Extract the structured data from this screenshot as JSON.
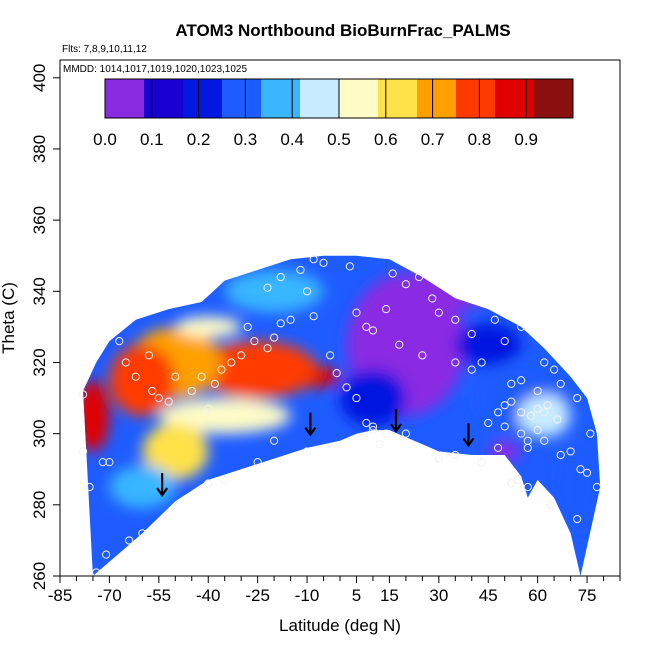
{
  "chart_data": {
    "type": "heatmap",
    "title": "ATOM3 Northbound BioBurnFrac_PALMS",
    "subtitle_flights": "Flts: 7,8,9,10,11,12",
    "subtitle_dates": "MMDD: 1014,1017,1019,1020,1023,1025",
    "xlabel": "Latitude (deg N)",
    "ylabel": "Theta (C)",
    "xlim": [
      -85,
      85
    ],
    "ylim": [
      260,
      405
    ],
    "x_ticks": [
      -85,
      -70,
      -55,
      -40,
      -25,
      -10,
      5,
      15,
      30,
      45,
      60,
      75
    ],
    "y_ticks": [
      260,
      280,
      300,
      320,
      340,
      360,
      380,
      400
    ],
    "colorbar": {
      "min": 0.0,
      "max": 1.0,
      "tick_values": [
        0.0,
        0.1,
        0.2,
        0.3,
        0.4,
        0.5,
        0.6,
        0.7,
        0.8,
        0.9
      ],
      "tick_labels": [
        "0.0",
        "0.1",
        "0.2",
        "0.3",
        "0.4",
        "0.5",
        "0.6",
        "0.7",
        "0.8",
        "0.9"
      ],
      "colors": [
        "#8a2be2",
        "#1a00d0",
        "#0018e0",
        "#1e5cff",
        "#39b6ff",
        "#c8ecff",
        "#fffcc8",
        "#ffe14a",
        "#ffa000",
        "#ff3a00",
        "#e00000",
        "#8b1010"
      ]
    },
    "tropopause_arrows": [
      {
        "lat": -54,
        "theta": 283
      },
      {
        "lat": -9,
        "theta": 300
      },
      {
        "lat": 17,
        "theta": 301
      },
      {
        "lat": 39,
        "theta": 297
      }
    ],
    "domain_bottom": [
      [
        -75,
        260
      ],
      [
        -70,
        264
      ],
      [
        -60,
        272
      ],
      [
        -50,
        281
      ],
      [
        -40,
        287
      ],
      [
        -30,
        290
      ],
      [
        -20,
        293
      ],
      [
        -10,
        296
      ],
      [
        0,
        298
      ],
      [
        5,
        300
      ],
      [
        10,
        301
      ],
      [
        15,
        301
      ],
      [
        20,
        299
      ],
      [
        25,
        297
      ],
      [
        30,
        295
      ],
      [
        40,
        294
      ],
      [
        50,
        294
      ],
      [
        55,
        288
      ],
      [
        57,
        282
      ],
      [
        60,
        287
      ],
      [
        65,
        282
      ],
      [
        70,
        272
      ],
      [
        73,
        260
      ]
    ],
    "domain_top": [
      [
        -78,
        312
      ],
      [
        -74,
        320
      ],
      [
        -70,
        326
      ],
      [
        -62,
        332
      ],
      [
        -52,
        335
      ],
      [
        -42,
        337
      ],
      [
        -35,
        343
      ],
      [
        -25,
        346
      ],
      [
        -15,
        349
      ],
      [
        -5,
        350
      ],
      [
        5,
        350
      ],
      [
        15,
        349
      ],
      [
        25,
        344
      ],
      [
        35,
        338
      ],
      [
        45,
        335
      ],
      [
        55,
        330
      ],
      [
        62,
        324
      ],
      [
        70,
        316
      ],
      [
        75,
        310
      ],
      [
        78,
        300
      ],
      [
        79,
        285
      ]
    ],
    "field_features": [
      {
        "lat": -8,
        "theta": 316,
        "value": 0.9,
        "rx": 8,
        "ry": 3
      },
      {
        "lat": -25,
        "theta": 318,
        "value": 0.8,
        "rx": 18,
        "ry": 8
      },
      {
        "lat": -50,
        "theta": 320,
        "value": 0.7,
        "rx": 14,
        "ry": 10
      },
      {
        "lat": -75,
        "theta": 305,
        "value": 0.85,
        "rx": 5,
        "ry": 10
      },
      {
        "lat": -60,
        "theta": 315,
        "value": 0.75,
        "rx": 10,
        "ry": 10
      },
      {
        "lat": -40,
        "theta": 330,
        "value": 0.55,
        "rx": 10,
        "ry": 3
      },
      {
        "lat": -35,
        "theta": 305,
        "value": 0.55,
        "rx": 20,
        "ry": 5
      },
      {
        "lat": -50,
        "theta": 295,
        "value": 0.6,
        "rx": 10,
        "ry": 8
      },
      {
        "lat": -60,
        "theta": 285,
        "value": 0.35,
        "rx": 10,
        "ry": 6
      },
      {
        "lat": -20,
        "theta": 340,
        "value": 0.35,
        "rx": 15,
        "ry": 6
      },
      {
        "lat": 20,
        "theta": 325,
        "value": 0.08,
        "rx": 18,
        "ry": 20
      },
      {
        "lat": 30,
        "theta": 340,
        "value": 0.08,
        "rx": 15,
        "ry": 6
      },
      {
        "lat": 10,
        "theta": 310,
        "value": 0.2,
        "rx": 10,
        "ry": 8
      },
      {
        "lat": 55,
        "theta": 310,
        "value": 0.33,
        "rx": 14,
        "ry": 10
      },
      {
        "lat": 62,
        "theta": 305,
        "value": 0.45,
        "rx": 8,
        "ry": 6
      },
      {
        "lat": 50,
        "theta": 295,
        "value": 0.05,
        "rx": 5,
        "ry": 3
      },
      {
        "lat": 72,
        "theta": 285,
        "value": 0.3,
        "rx": 6,
        "ry": 12
      },
      {
        "lat": 45,
        "theta": 325,
        "value": 0.2,
        "rx": 10,
        "ry": 6
      }
    ],
    "data_points": [
      [
        -78,
        311
      ],
      [
        -78,
        295
      ],
      [
        -76,
        285
      ],
      [
        -74,
        261
      ],
      [
        -72,
        292
      ],
      [
        -70,
        292
      ],
      [
        -71,
        266
      ],
      [
        -64,
        270
      ],
      [
        -60,
        272
      ],
      [
        -67,
        326
      ],
      [
        -65,
        320
      ],
      [
        -62,
        316
      ],
      [
        -58,
        322
      ],
      [
        -57,
        312
      ],
      [
        -55,
        310
      ],
      [
        -52,
        309
      ],
      [
        -50,
        316
      ],
      [
        -45,
        312
      ],
      [
        -42,
        316
      ],
      [
        -40,
        307
      ],
      [
        -38,
        314
      ],
      [
        -36,
        318
      ],
      [
        -33,
        320
      ],
      [
        -30,
        322
      ],
      [
        -28,
        330
      ],
      [
        -26,
        326
      ],
      [
        -22,
        324
      ],
      [
        -20,
        327
      ],
      [
        -18,
        331
      ],
      [
        -15,
        332
      ],
      [
        -22,
        341
      ],
      [
        -18,
        344
      ],
      [
        -12,
        346
      ],
      [
        -8,
        349
      ],
      [
        -5,
        348
      ],
      [
        -10,
        340
      ],
      [
        -8,
        333
      ],
      [
        -3,
        322
      ],
      [
        -1,
        317
      ],
      [
        2,
        313
      ],
      [
        5,
        310
      ],
      [
        8,
        303
      ],
      [
        10,
        302
      ],
      [
        10,
        301
      ],
      [
        12,
        297
      ],
      [
        14,
        300
      ],
      [
        -25,
        292
      ],
      [
        -35,
        287
      ],
      [
        -40,
        286
      ],
      [
        -20,
        298
      ],
      [
        -10,
        295
      ],
      [
        3,
        347
      ],
      [
        5,
        334
      ],
      [
        8,
        330
      ],
      [
        10,
        329
      ],
      [
        14,
        335
      ],
      [
        16,
        345
      ],
      [
        20,
        342
      ],
      [
        24,
        344
      ],
      [
        28,
        338
      ],
      [
        30,
        334
      ],
      [
        35,
        332
      ],
      [
        40,
        328
      ],
      [
        43,
        320
      ],
      [
        47,
        332
      ],
      [
        50,
        326
      ],
      [
        55,
        330
      ],
      [
        60,
        312
      ],
      [
        55,
        315
      ],
      [
        52,
        314
      ],
      [
        50,
        308
      ],
      [
        48,
        306
      ],
      [
        45,
        303
      ],
      [
        50,
        302
      ],
      [
        55,
        300
      ],
      [
        57,
        296
      ],
      [
        60,
        301
      ],
      [
        58,
        305
      ],
      [
        62,
        306
      ],
      [
        65,
        318
      ],
      [
        62,
        320
      ],
      [
        67,
        314
      ],
      [
        72,
        310
      ],
      [
        76,
        300
      ],
      [
        70,
        295
      ],
      [
        73,
        290
      ],
      [
        67,
        294
      ],
      [
        62,
        298
      ],
      [
        57,
        298
      ],
      [
        48,
        296
      ],
      [
        43,
        292
      ],
      [
        30,
        293
      ],
      [
        20,
        300
      ],
      [
        35,
        294
      ],
      [
        64,
        280
      ],
      [
        72,
        276
      ],
      [
        54,
        287
      ],
      [
        52,
        286
      ],
      [
        57,
        285
      ],
      [
        40,
        318
      ],
      [
        35,
        320
      ],
      [
        25,
        322
      ],
      [
        18,
        325
      ],
      [
        60,
        307
      ],
      [
        55,
        306
      ],
      [
        52,
        309
      ],
      [
        66,
        304
      ],
      [
        63,
        308
      ],
      [
        78,
        285
      ],
      [
        75,
        289
      ]
    ]
  }
}
